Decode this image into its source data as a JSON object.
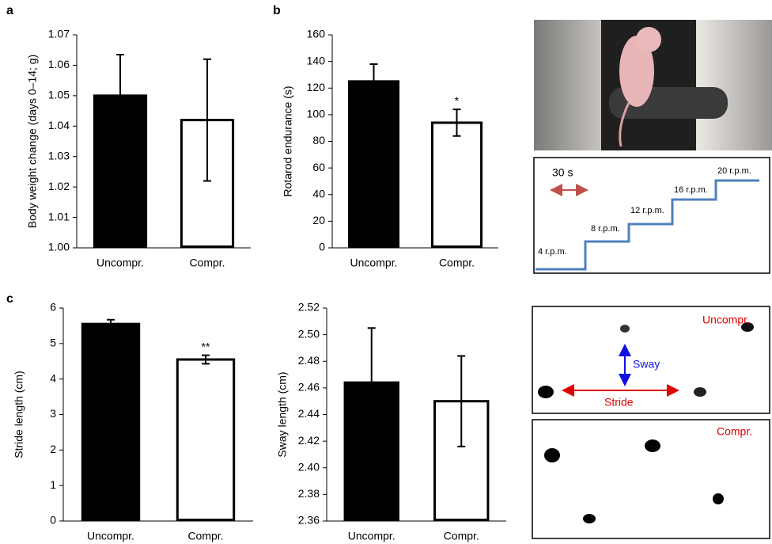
{
  "panel_labels": [
    "a",
    "b",
    "c"
  ],
  "chart_data": [
    {
      "type": "bar",
      "ylabel": "Body weight change (days 0–14; g)",
      "categories": [
        "Uncompr.",
        "Compr."
      ],
      "values": [
        1.05,
        1.042
      ],
      "errors": [
        0.0135,
        0.02
      ],
      "colors": [
        "#000000",
        "#ffffff"
      ],
      "ylim": [
        1,
        1.07
      ],
      "yticks": [
        {
          "value": 1,
          "label": "1.00"
        },
        1.01,
        1.02,
        1.03,
        1.04,
        1.05,
        1.06,
        1.07
      ]
    },
    {
      "type": "bar",
      "ylabel": "Rotarod endurance (s)",
      "categories": [
        "Uncompr.",
        "Compr."
      ],
      "values": [
        125,
        94
      ],
      "errors": [
        13,
        10
      ],
      "colors": [
        "#000000",
        "#ffffff"
      ],
      "annotations": [
        null,
        "*"
      ],
      "ylim": [
        0,
        160
      ],
      "yticks": [
        0,
        20,
        40,
        60,
        80,
        100,
        120,
        140,
        160
      ]
    },
    {
      "type": "bar",
      "ylabel": "Stride length (cm)",
      "categories": [
        "Uncompr.",
        "Compr."
      ],
      "values": [
        5.55,
        4.55
      ],
      "errors": [
        0.12,
        0.12
      ],
      "colors": [
        "#000000",
        "#ffffff"
      ],
      "annotations": [
        null,
        "**"
      ],
      "ylim": [
        0,
        6
      ],
      "yticks": [
        0,
        1,
        2,
        3,
        4,
        5,
        6
      ]
    },
    {
      "type": "bar",
      "ylabel": "Sway length (cm)",
      "categories": [
        "Uncompr.",
        "Compr."
      ],
      "values": [
        2.464,
        2.45
      ],
      "errors": [
        0.041,
        0.034
      ],
      "colors": [
        "#000000",
        "#ffffff"
      ],
      "ylim": [
        2.36,
        2.52
      ],
      "yticks": [
        2.36,
        2.38,
        {
          "value": 2.4,
          "label": "2.40"
        },
        2.42,
        2.44,
        2.46,
        2.48,
        {
          "value": 2.5,
          "label": "2.50"
        },
        2.52
      ]
    }
  ],
  "protocol": {
    "interval": "30 s",
    "speeds": [
      "4 r.p.m.",
      "8 r.p.m.",
      "12 r.p.m.",
      "16 r.p.m.",
      "20 r.p.m."
    ]
  },
  "footprints": {
    "top": {
      "label": "Uncompr.",
      "sway": "Sway",
      "stride": "Stride"
    },
    "bottom": {
      "label": "Compr."
    }
  }
}
